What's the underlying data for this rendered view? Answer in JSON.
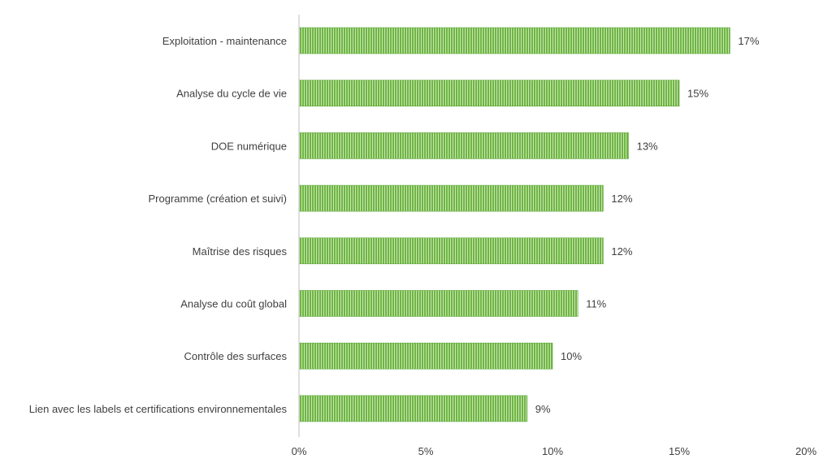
{
  "chart_data": {
    "type": "bar",
    "orientation": "horizontal",
    "categories": [
      "Exploitation - maintenance",
      "Analyse du cycle de vie",
      "DOE numérique",
      "Programme (création et suivi)",
      "Maîtrise des risques",
      "Analyse du coût global",
      "Contrôle des surfaces",
      "Lien avec les labels et certifications environnementales"
    ],
    "values": [
      17,
      15,
      13,
      12,
      12,
      11,
      10,
      9
    ],
    "data_labels": [
      "17%",
      "15%",
      "13%",
      "12%",
      "12%",
      "11%",
      "10%",
      "9%"
    ],
    "xlim": [
      0,
      20
    ],
    "x_ticks": [
      0,
      5,
      10,
      15,
      20
    ],
    "x_tick_labels": [
      "0%",
      "5%",
      "10%",
      "15%",
      "20%"
    ],
    "title": "",
    "xlabel": "",
    "ylabel": "",
    "grid": false,
    "legend": "none",
    "colors": {
      "bar_fill": "#6fb544",
      "bar_stripe": "#c9e6b3",
      "bar_edge": "#5ea83a",
      "axis": "#bfbfbf",
      "text": "#404040"
    }
  }
}
